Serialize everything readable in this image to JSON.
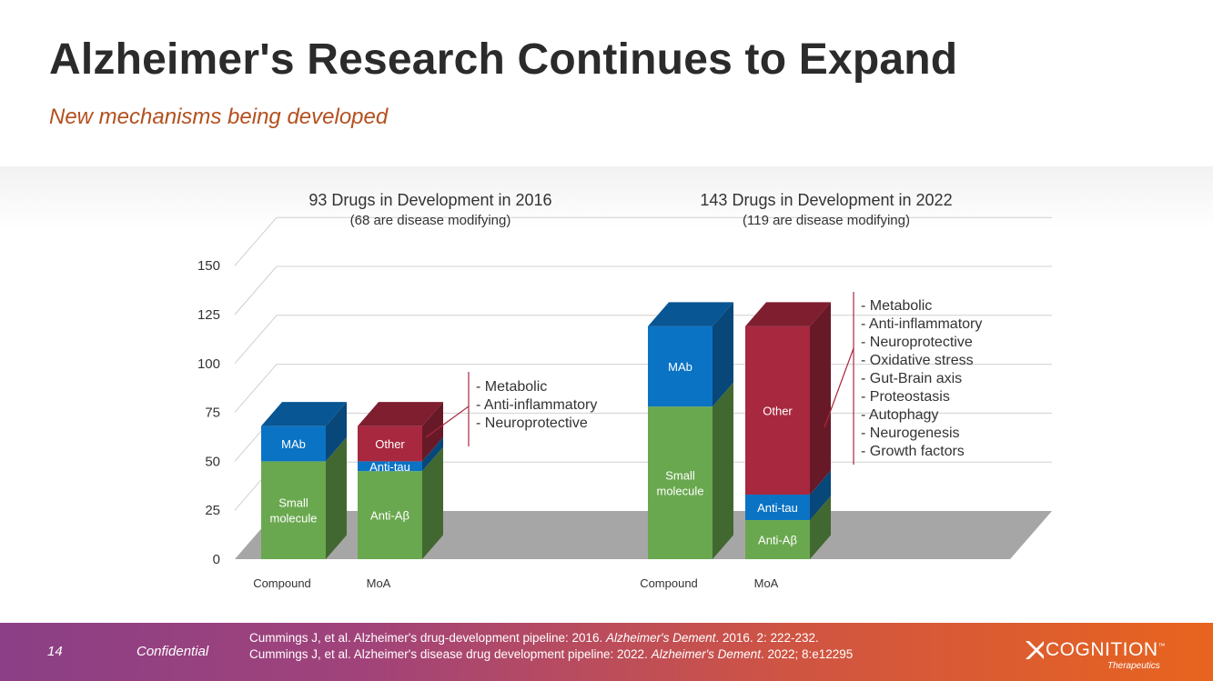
{
  "slide": {
    "title": "Alzheimer's Research Continues to Expand",
    "subtitle": "New mechanisms being developed"
  },
  "chart_data": {
    "type": "bar",
    "stacked": true,
    "style": "3d",
    "ylim": [
      0,
      150
    ],
    "yticks": [
      "0",
      "25",
      "50",
      "75",
      "100",
      "125",
      "150"
    ],
    "groups": [
      {
        "title": "93 Drugs in Development in 2016",
        "subtitle": "(68 are disease modifying)",
        "bars": [
          {
            "label": "Compound",
            "segments": [
              {
                "name": "Small\nmolecule",
                "value": 50,
                "color": "#6aa84f"
              },
              {
                "name": "MAb",
                "value": 18,
                "color": "#0b73c4"
              }
            ]
          },
          {
            "label": "MoA",
            "segments": [
              {
                "name": "Anti-Aβ",
                "value": 45,
                "color": "#6aa84f"
              },
              {
                "name": "Anti-tau",
                "value": 5,
                "color": "#0b73c4"
              },
              {
                "name": "Other",
                "value": 18,
                "color": "#a8283f"
              }
            ]
          }
        ],
        "other_annotation": [
          "- Metabolic",
          "- Anti-inflammatory",
          "- Neuroprotective"
        ]
      },
      {
        "title": "143 Drugs in Development in 2022",
        "subtitle": "(119 are disease modifying)",
        "bars": [
          {
            "label": "Compound",
            "segments": [
              {
                "name": "Small\nmolecule",
                "value": 78,
                "color": "#6aa84f"
              },
              {
                "name": "MAb",
                "value": 41,
                "color": "#0b73c4"
              }
            ]
          },
          {
            "label": "MoA",
            "segments": [
              {
                "name": "Anti-Aβ",
                "value": 20,
                "color": "#6aa84f"
              },
              {
                "name": "Anti-tau",
                "value": 13,
                "color": "#0b73c4"
              },
              {
                "name": "Other",
                "value": 86,
                "color": "#a8283f"
              }
            ]
          }
        ],
        "other_annotation": [
          "- Metabolic",
          "- Anti-inflammatory",
          "- Neuroprotective",
          "- Oxidative stress",
          "- Gut-Brain axis",
          "- Proteostasis",
          "- Autophagy",
          "- Neurogenesis",
          "- Growth factors"
        ]
      }
    ]
  },
  "footer": {
    "page_number": "14",
    "confidential": "Confidential",
    "citations": [
      {
        "text": "Cummings J, et al. Alzheimer's drug-development pipeline: 2016. ",
        "journal": "Alzheimer's Dement",
        "rest": ". 2016. 2: 222-232."
      },
      {
        "text": "Cummings J, et al. Alzheimer's disease drug development pipeline: 2022. ",
        "journal": "Alzheimer's Dement",
        "rest": ". 2022; 8:e12295"
      }
    ],
    "logo_text": "COGNITION",
    "logo_tm": "™",
    "logo_sub": "Therapeutics"
  }
}
